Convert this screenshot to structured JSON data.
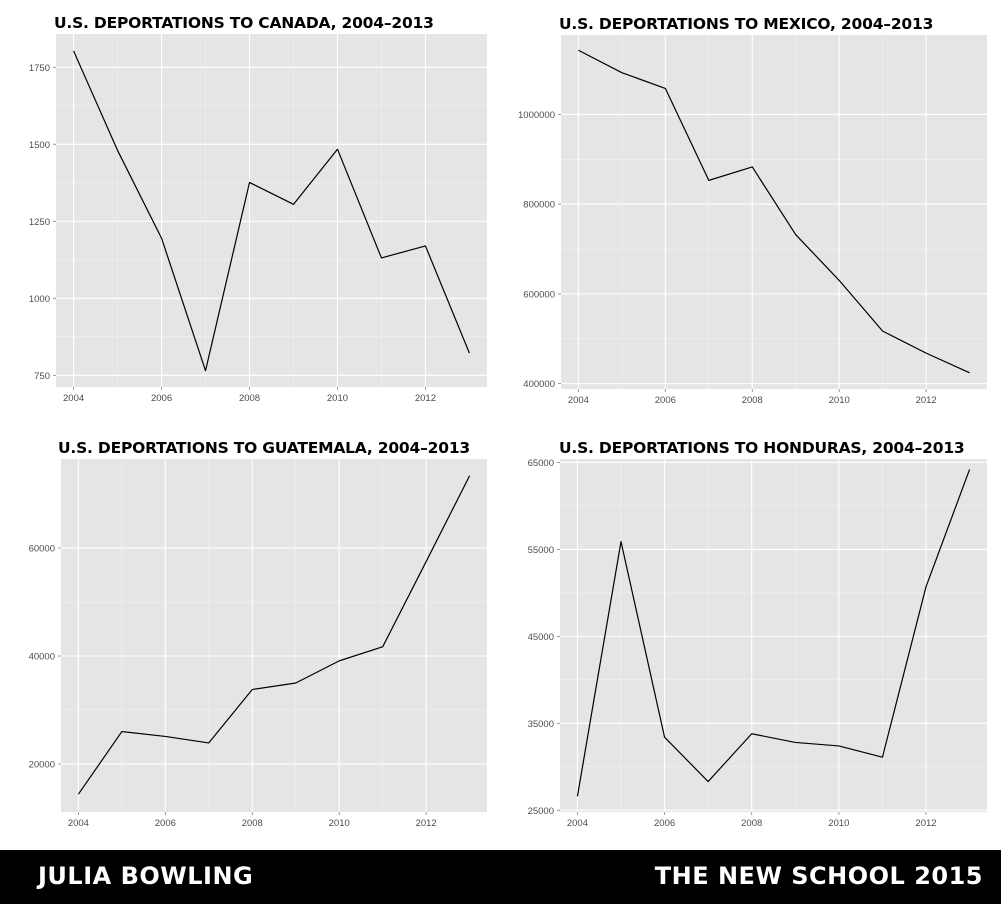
{
  "chart_data": [
    {
      "type": "line",
      "title": "U.S. DEPORTATIONS TO CANADA, 2004–2013",
      "x": [
        2004,
        2005,
        2006,
        2007,
        2008,
        2009,
        2010,
        2011,
        2012,
        2013
      ],
      "values": [
        1803,
        1480,
        1195,
        765,
        1376,
        1305,
        1484,
        1131,
        1170,
        822
      ],
      "xlim": [
        2003.6,
        2013.4
      ],
      "ylim": [
        712,
        1858
      ],
      "xticks": [
        2004,
        2006,
        2008,
        2010,
        2012
      ],
      "yticks": [
        750,
        1000,
        1250,
        1500,
        1750
      ],
      "xlabel": "",
      "ylabel": "",
      "grid": true
    },
    {
      "type": "line",
      "title": "U.S. DEPORTATIONS TO MEXICO, 2004–2013",
      "x": [
        2004,
        2005,
        2006,
        2007,
        2008,
        2009,
        2010,
        2011,
        2012,
        2013
      ],
      "values": [
        1143000,
        1093000,
        1058000,
        853000,
        883000,
        732000,
        630000,
        517000,
        468000,
        424000
      ],
      "xlim": [
        2003.6,
        2013.4
      ],
      "ylim": [
        388000,
        1177000
      ],
      "xticks": [
        2004,
        2006,
        2008,
        2010,
        2012
      ],
      "yticks": [
        400000,
        600000,
        800000,
        1000000
      ],
      "xlabel": "",
      "ylabel": "",
      "grid": true
    },
    {
      "type": "line",
      "title": "U.S. DEPORTATIONS TO GUATEMALA, 2004–2013",
      "x": [
        2004,
        2005,
        2006,
        2007,
        2008,
        2009,
        2010,
        2011,
        2012,
        2013
      ],
      "values": [
        14400,
        26000,
        25100,
        23900,
        33800,
        35000,
        39100,
        41700,
        57500,
        73400
      ],
      "xlim": [
        2003.6,
        2013.4
      ],
      "ylim": [
        11100,
        76500
      ],
      "xticks": [
        2004,
        2006,
        2008,
        2010,
        2012
      ],
      "yticks": [
        20000,
        40000,
        60000
      ],
      "xlabel": "",
      "ylabel": "",
      "grid": true
    },
    {
      "type": "line",
      "title": "U.S. DEPORTATIONS TO HONDURAS, 2004–2013",
      "x": [
        2004,
        2005,
        2006,
        2007,
        2008,
        2009,
        2010,
        2011,
        2012,
        2013
      ],
      "values": [
        26600,
        55900,
        33400,
        28300,
        33800,
        32800,
        32400,
        31100,
        50700,
        64200
      ],
      "xlim": [
        2003.6,
        2013.4
      ],
      "ylim": [
        24800,
        65400
      ],
      "xticks": [
        2004,
        2006,
        2008,
        2010,
        2012
      ],
      "yticks": [
        25000,
        35000,
        45000,
        55000,
        65000
      ],
      "xlabel": "",
      "ylabel": "",
      "grid": true
    }
  ],
  "footer": {
    "author": "JULIA BOWLING",
    "institution": "THE NEW SCHOOL 2015"
  },
  "colors": {
    "panel_background": "#e5e5e5",
    "grid_major": "#ffffff",
    "grid_minor": "#f2f2f2",
    "line": "#000000",
    "footer_background": "#000000",
    "footer_text": "#ffffff"
  }
}
